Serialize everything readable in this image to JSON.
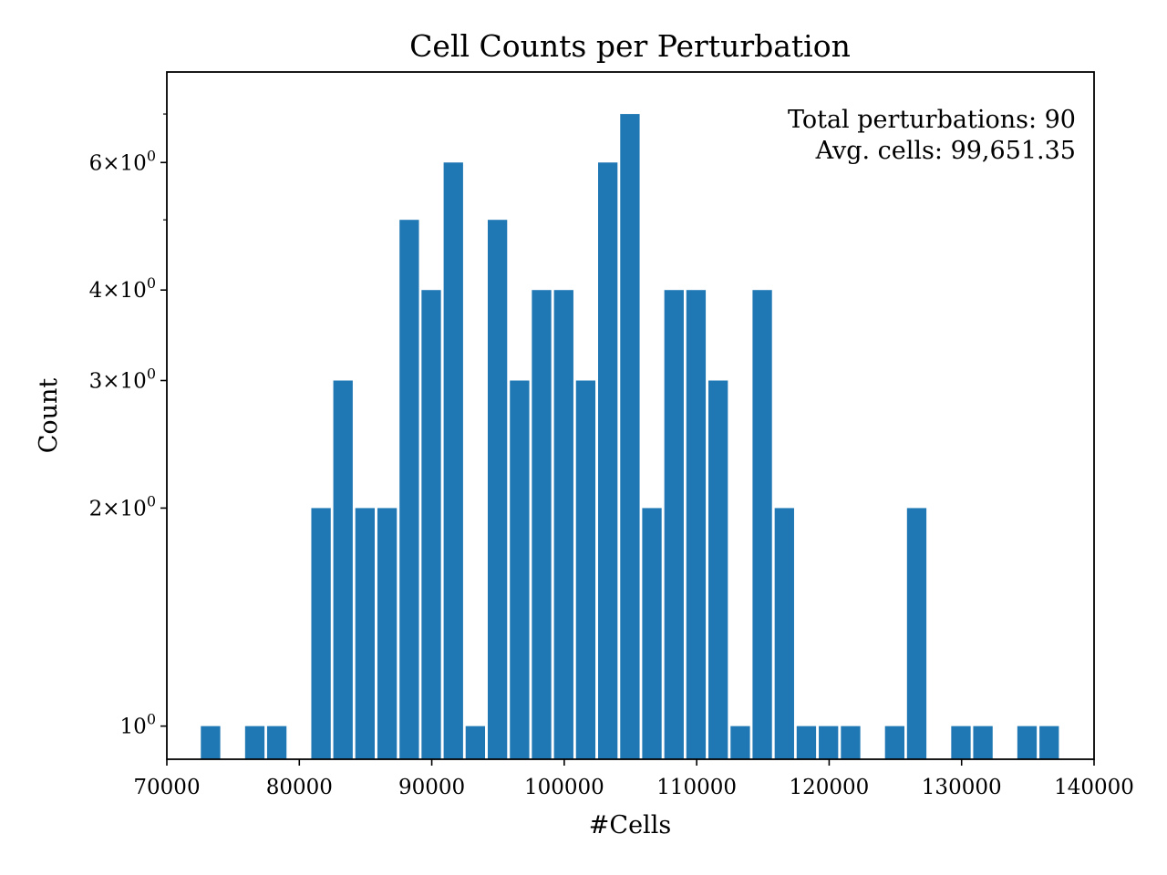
{
  "chart_data": {
    "type": "bar",
    "title": "Cell Counts per Perturbation",
    "xlabel": "#Cells",
    "ylabel": "Count",
    "yscale": "log",
    "xlim": [
      70000,
      140000
    ],
    "ylim": [
      0.9,
      8.0
    ],
    "grid": false,
    "x_ticks": [
      {
        "value": 70000,
        "label": "70000"
      },
      {
        "value": 80000,
        "label": "80000"
      },
      {
        "value": 90000,
        "label": "90000"
      },
      {
        "value": 100000,
        "label": "100000"
      },
      {
        "value": 110000,
        "label": "110000"
      },
      {
        "value": 120000,
        "label": "120000"
      },
      {
        "value": 130000,
        "label": "130000"
      },
      {
        "value": 140000,
        "label": "140000"
      }
    ],
    "y_ticks": [
      {
        "value": 1,
        "base": "10",
        "exp": "0"
      },
      {
        "value": 2,
        "base": "2×10",
        "exp": "0"
      },
      {
        "value": 3,
        "base": "3×10",
        "exp": "0"
      },
      {
        "value": 4,
        "base": "4×10",
        "exp": "0"
      },
      {
        "value": 6,
        "base": "6×10",
        "exp": "0"
      }
    ],
    "y_minor_ticks": [
      5,
      7
    ],
    "bin_width": 1666,
    "bars": [
      {
        "x": 73300,
        "count": 1
      },
      {
        "x": 76640,
        "count": 1
      },
      {
        "x": 78300,
        "count": 1
      },
      {
        "x": 81640,
        "count": 2
      },
      {
        "x": 83300,
        "count": 3
      },
      {
        "x": 84960,
        "count": 2
      },
      {
        "x": 86630,
        "count": 2
      },
      {
        "x": 88300,
        "count": 5
      },
      {
        "x": 89960,
        "count": 4
      },
      {
        "x": 91630,
        "count": 6
      },
      {
        "x": 93290,
        "count": 1
      },
      {
        "x": 94960,
        "count": 5
      },
      {
        "x": 96630,
        "count": 3
      },
      {
        "x": 98290,
        "count": 4
      },
      {
        "x": 99960,
        "count": 4
      },
      {
        "x": 101620,
        "count": 3
      },
      {
        "x": 103290,
        "count": 6
      },
      {
        "x": 104960,
        "count": 7
      },
      {
        "x": 106620,
        "count": 2
      },
      {
        "x": 108290,
        "count": 4
      },
      {
        "x": 109950,
        "count": 4
      },
      {
        "x": 111620,
        "count": 3
      },
      {
        "x": 113290,
        "count": 1
      },
      {
        "x": 114950,
        "count": 4
      },
      {
        "x": 116620,
        "count": 2
      },
      {
        "x": 118280,
        "count": 1
      },
      {
        "x": 119950,
        "count": 1
      },
      {
        "x": 121620,
        "count": 1
      },
      {
        "x": 124950,
        "count": 1
      },
      {
        "x": 126610,
        "count": 2
      },
      {
        "x": 129950,
        "count": 1
      },
      {
        "x": 131610,
        "count": 1
      },
      {
        "x": 134940,
        "count": 1
      },
      {
        "x": 136610,
        "count": 1
      }
    ],
    "annotations": [
      "Total perturbations: 90",
      "Avg. cells: 99,651.35"
    ],
    "annotation_position": "top-right",
    "bar_color": "#1f77b4"
  }
}
